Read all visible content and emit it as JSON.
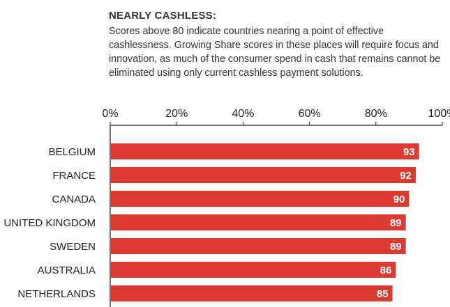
{
  "header": {
    "heading": "NEARLY CASHLESS:",
    "description": "Scores above 80 indicate countries nearing a point of effective cashlessness. Growing Share scores in these places will require focus and innovation, as much of the consumer spend in cash that remains cannot be eliminated using only current cashless payment solutions."
  },
  "colors": {
    "accent": "#d93a2f",
    "bar": "#dc3a30",
    "text": "#333333",
    "axis": "#222222"
  },
  "chart_data": {
    "type": "bar",
    "orientation": "horizontal",
    "categories": [
      "BELGIUM",
      "FRANCE",
      "CANADA",
      "UNITED KINGDOM",
      "SWEDEN",
      "AUSTRALIA",
      "NETHERLANDS"
    ],
    "values": [
      93,
      92,
      90,
      89,
      89,
      86,
      85
    ],
    "value_labels": [
      "93",
      "92",
      "90",
      "89",
      "89",
      "86",
      "85"
    ],
    "xlim": [
      0,
      100
    ],
    "x_ticks": [
      0,
      20,
      40,
      60,
      80,
      100
    ],
    "x_tick_labels": [
      "0%",
      "20%",
      "40%",
      "60%",
      "80%",
      "100%"
    ],
    "x_axis_position": "top",
    "grid": false,
    "legend": "none"
  }
}
